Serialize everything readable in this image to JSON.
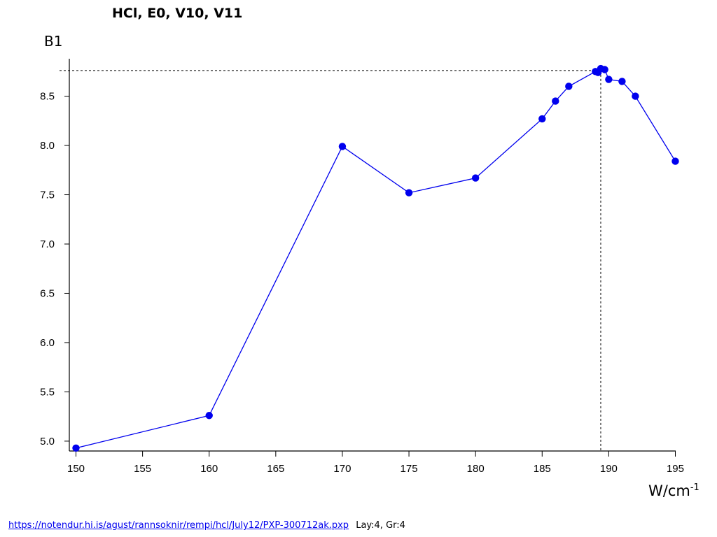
{
  "chart_data": {
    "type": "line",
    "title": "HCl, E0, V10, V11",
    "ylabel": "B1",
    "xlabel_base": "W/cm",
    "xlabel_sup": "-1",
    "xlim": [
      149.5,
      195.5
    ],
    "ylim": [
      4.9,
      8.88
    ],
    "xticks": [
      150,
      155,
      160,
      165,
      170,
      175,
      180,
      185,
      190,
      195
    ],
    "yticks": [
      "5.0",
      "5.5",
      "6.0",
      "6.5",
      "7.0",
      "7.5",
      "8.0",
      "8.5"
    ],
    "grid": false,
    "series_color": "#0000ee",
    "reference_point": {
      "x": 189.4,
      "y": 8.76
    },
    "series": [
      {
        "x": [
          150,
          160,
          170,
          175,
          180,
          185,
          186,
          187,
          189,
          189.2,
          189.4,
          189.7,
          190,
          191,
          192,
          195
        ],
        "y": [
          4.93,
          5.26,
          7.99,
          7.52,
          7.67,
          8.27,
          8.45,
          8.6,
          8.75,
          8.74,
          8.78,
          8.77,
          8.67,
          8.65,
          8.5,
          7.84
        ]
      }
    ]
  },
  "footer": {
    "link": "https://notendur.hi.is/agust/rannsoknir/rempi/hcl/July12/PXP-300712ak.pxp",
    "meta": "Lay:4, Gr:4"
  }
}
